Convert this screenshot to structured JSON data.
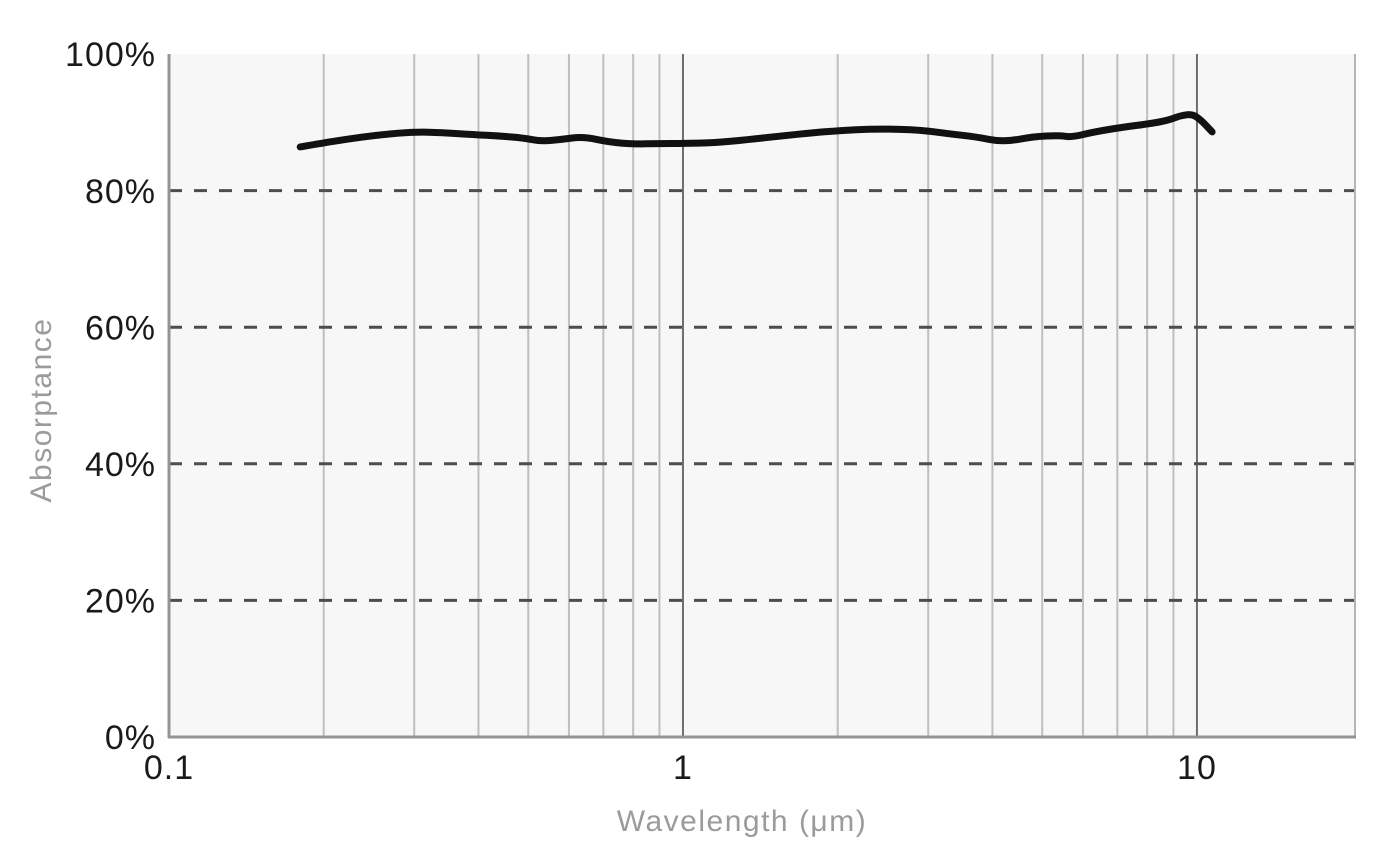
{
  "chart_data": {
    "type": "line",
    "title": "",
    "xlabel": "Wavelength (μm)",
    "ylabel": "Absorptance",
    "x_scale": "log",
    "x_range": [
      0.1,
      20.3
    ],
    "y_range": [
      0,
      100
    ],
    "grid": true,
    "legend": "none",
    "x_ticks": [
      {
        "value": 0.1,
        "label": "0.1"
      },
      {
        "value": 1,
        "label": "1"
      },
      {
        "value": 10,
        "label": "10"
      }
    ],
    "y_ticks": [
      {
        "value": 0,
        "label": "0%"
      },
      {
        "value": 20,
        "label": "20%"
      },
      {
        "value": 40,
        "label": "40%"
      },
      {
        "value": 60,
        "label": "60%"
      },
      {
        "value": 80,
        "label": "80%"
      },
      {
        "value": 100,
        "label": "100%"
      }
    ],
    "y_dashed_gridlines": [
      20,
      40,
      60,
      80
    ],
    "x_minor_gridlines": [
      0.2,
      0.3,
      0.4,
      0.5,
      0.6,
      0.7,
      0.8,
      0.9,
      2,
      3,
      4,
      5,
      6,
      7,
      8,
      9
    ],
    "x_major_gridlines": [
      1,
      10
    ],
    "series": [
      {
        "name": "Absorptance",
        "color": "#111111",
        "line_width": 7,
        "x": [
          0.18,
          0.2,
          0.23,
          0.26,
          0.3,
          0.34,
          0.39,
          0.44,
          0.49,
          0.53,
          0.58,
          0.64,
          0.72,
          0.8,
          0.9,
          1.0,
          1.15,
          1.35,
          1.55,
          1.8,
          2.05,
          2.3,
          2.6,
          2.95,
          3.3,
          3.7,
          4.2,
          4.8,
          5.4,
          5.7,
          6.3,
          7.2,
          8.1,
          8.8,
          9.3,
          9.8,
          10.2,
          10.7
        ],
        "y": [
          86.4,
          87.0,
          87.7,
          88.2,
          88.6,
          88.5,
          88.2,
          88.0,
          87.7,
          87.2,
          87.5,
          87.9,
          87.1,
          86.8,
          86.9,
          86.9,
          87.0,
          87.5,
          88.0,
          88.5,
          88.8,
          89.0,
          89.0,
          88.8,
          88.3,
          87.9,
          87.1,
          87.9,
          88.1,
          87.8,
          88.6,
          89.3,
          89.8,
          90.3,
          91.0,
          91.2,
          90.3,
          88.6
        ]
      }
    ],
    "colors": {
      "plot_background": "#f7f7f7",
      "minor_gridline": "#bfbfbf",
      "major_gridline": "#6e6e6e",
      "dashed_gridline": "#4d4d4d",
      "axis_line": "#949494",
      "right_border": "#b5b5b5",
      "tick_label": "#1a1a1a",
      "axis_title": "#9b9b9b",
      "line": "#111111"
    }
  }
}
